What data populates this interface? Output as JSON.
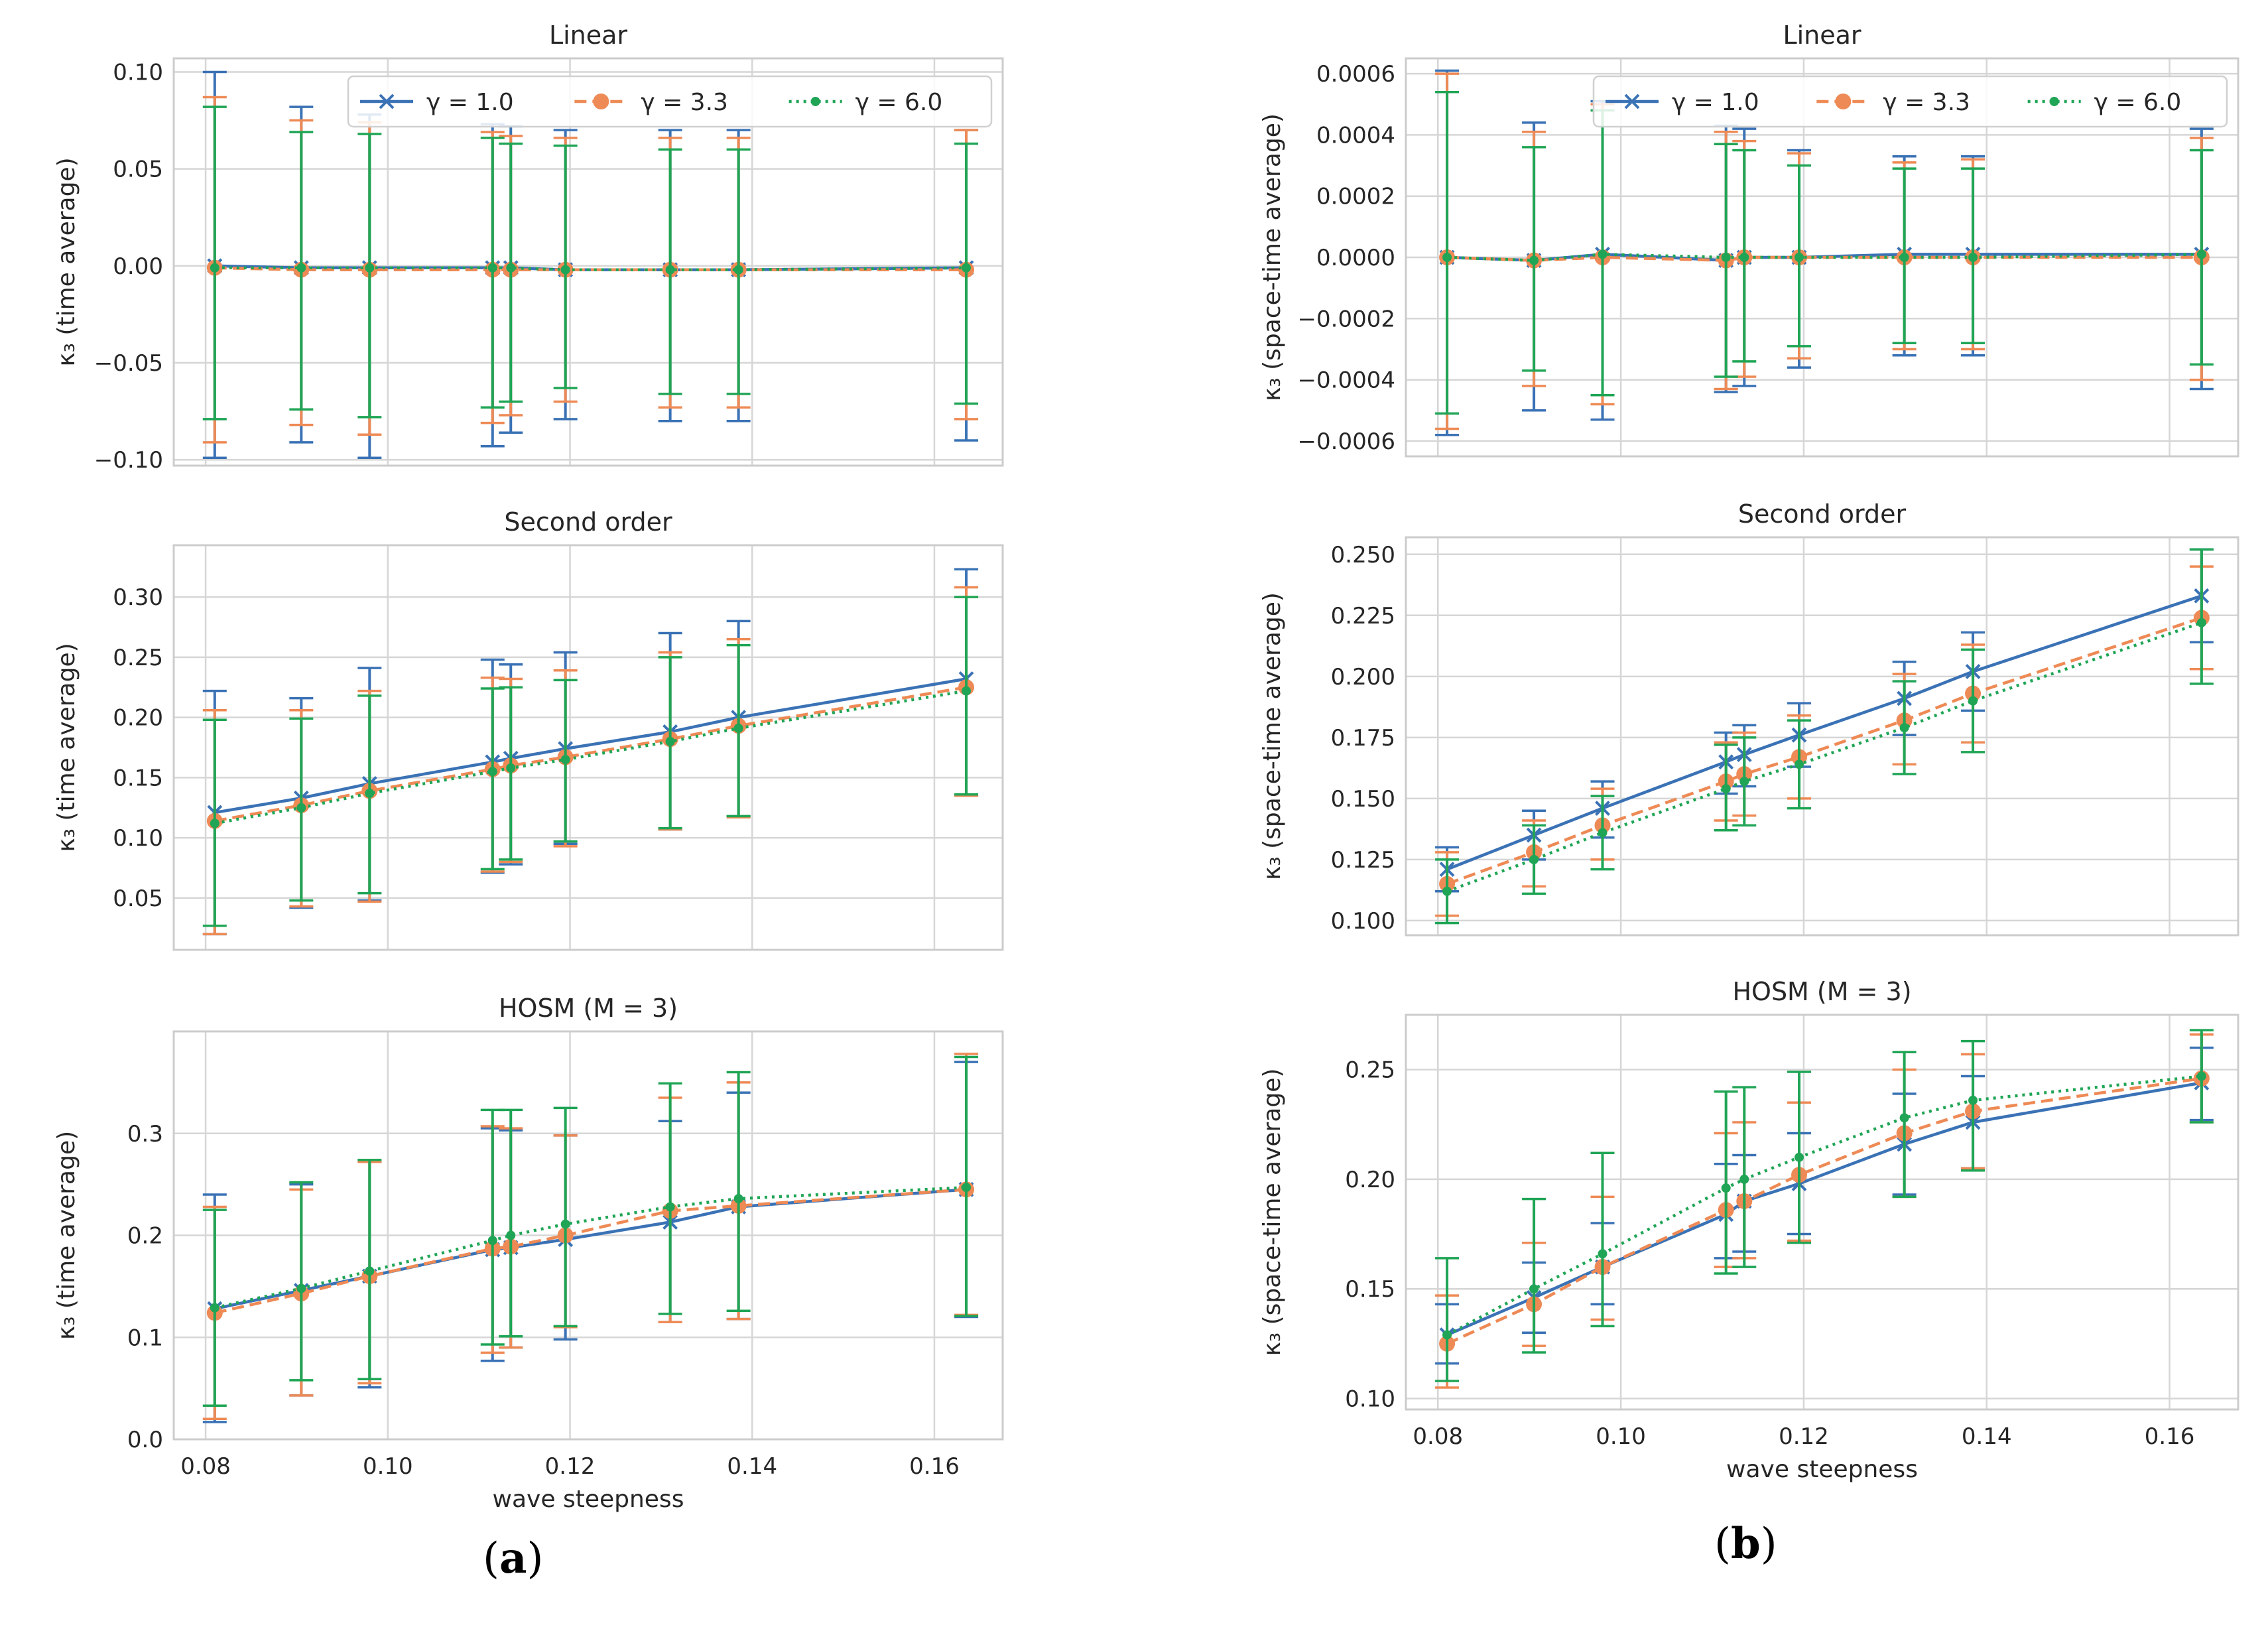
{
  "panel_labels": {
    "a": "a",
    "b": "b"
  },
  "legend_labels": [
    "γ = 1.0",
    "γ = 3.3",
    "γ = 6.0"
  ],
  "series_style": [
    {
      "color": "#3a72b5",
      "dash": "",
      "marker": "x"
    },
    {
      "color": "#ee8a55",
      "dash": "18,9",
      "marker": "circle"
    },
    {
      "color": "#1fa555",
      "dash": "4,7",
      "marker": "dot"
    }
  ],
  "chart_data": [
    {
      "type": "line",
      "id": "a-linear",
      "title": "Linear",
      "xlabel": "",
      "ylabel": "κ₃ (time average)",
      "x": [
        0.081,
        0.0905,
        0.098,
        0.1115,
        0.1135,
        0.1195,
        0.131,
        0.1385,
        0.1635
      ],
      "xlim": [
        0.0765,
        0.1675
      ],
      "xticks": [
        0.08,
        0.1,
        0.12,
        0.14,
        0.16
      ],
      "show_xticklabels": false,
      "ylim": [
        -0.103,
        0.107
      ],
      "yticks": [
        -0.1,
        -0.05,
        0.0,
        0.05,
        0.1
      ],
      "ytick_labels": [
        "−0.10",
        "−0.05",
        "0.00",
        "0.05",
        "0.10"
      ],
      "legend": "top-right",
      "series": [
        {
          "name": "γ = 1.0",
          "values": [
            0.0,
            -0.001,
            -0.001,
            -0.001,
            -0.001,
            -0.002,
            -0.002,
            -0.002,
            -0.001
          ],
          "err_low": [
            -0.099,
            -0.091,
            -0.099,
            -0.093,
            -0.086,
            -0.079,
            -0.08,
            -0.08,
            -0.09
          ],
          "err_high": [
            0.1,
            0.082,
            0.078,
            0.073,
            0.072,
            0.07,
            0.07,
            0.07,
            0.07
          ]
        },
        {
          "name": "γ = 3.3",
          "values": [
            -0.001,
            -0.002,
            -0.002,
            -0.002,
            -0.002,
            -0.002,
            -0.002,
            -0.002,
            -0.002
          ],
          "err_low": [
            -0.091,
            -0.082,
            -0.087,
            -0.081,
            -0.077,
            -0.07,
            -0.073,
            -0.073,
            -0.079
          ],
          "err_high": [
            0.087,
            0.075,
            0.074,
            0.069,
            0.067,
            0.066,
            0.066,
            0.066,
            0.07
          ]
        },
        {
          "name": "γ = 6.0",
          "values": [
            -0.001,
            -0.001,
            -0.001,
            -0.001,
            -0.001,
            -0.002,
            -0.002,
            -0.002,
            -0.001
          ],
          "err_low": [
            -0.079,
            -0.074,
            -0.078,
            -0.073,
            -0.07,
            -0.063,
            -0.066,
            -0.066,
            -0.071
          ],
          "err_high": [
            0.082,
            0.069,
            0.068,
            0.066,
            0.063,
            0.062,
            0.06,
            0.06,
            0.063
          ]
        }
      ]
    },
    {
      "type": "line",
      "id": "a-second",
      "title": "Second order",
      "xlabel": "",
      "ylabel": "κ₃ (time average)",
      "x": [
        0.081,
        0.0905,
        0.098,
        0.1115,
        0.1135,
        0.1195,
        0.131,
        0.1385,
        0.1635
      ],
      "xlim": [
        0.0765,
        0.1675
      ],
      "xticks": [
        0.08,
        0.1,
        0.12,
        0.14,
        0.16
      ],
      "show_xticklabels": false,
      "ylim": [
        0.007,
        0.343
      ],
      "yticks": [
        0.05,
        0.1,
        0.15,
        0.2,
        0.25,
        0.3
      ],
      "ytick_labels": [
        "0.05",
        "0.10",
        "0.15",
        "0.20",
        "0.25",
        "0.30"
      ],
      "series": [
        {
          "name": "γ = 1.0",
          "values": [
            0.121,
            0.133,
            0.145,
            0.163,
            0.166,
            0.174,
            0.188,
            0.2,
            0.232
          ],
          "err_low": [
            0.02,
            0.042,
            0.048,
            0.071,
            0.078,
            0.095,
            0.107,
            0.118,
            0.135
          ],
          "err_high": [
            0.222,
            0.216,
            0.241,
            0.248,
            0.244,
            0.254,
            0.27,
            0.28,
            0.323
          ]
        },
        {
          "name": "γ = 3.3",
          "values": [
            0.114,
            0.127,
            0.139,
            0.157,
            0.16,
            0.167,
            0.182,
            0.193,
            0.225
          ],
          "err_low": [
            0.02,
            0.043,
            0.047,
            0.072,
            0.08,
            0.093,
            0.107,
            0.117,
            0.135
          ],
          "err_high": [
            0.206,
            0.206,
            0.222,
            0.233,
            0.232,
            0.239,
            0.254,
            0.265,
            0.308
          ]
        },
        {
          "name": "γ = 6.0",
          "values": [
            0.112,
            0.125,
            0.137,
            0.155,
            0.158,
            0.165,
            0.18,
            0.191,
            0.222
          ],
          "err_low": [
            0.027,
            0.048,
            0.054,
            0.074,
            0.082,
            0.097,
            0.108,
            0.118,
            0.136
          ],
          "err_high": [
            0.198,
            0.199,
            0.218,
            0.224,
            0.225,
            0.231,
            0.25,
            0.26,
            0.3
          ]
        }
      ]
    },
    {
      "type": "line",
      "id": "a-hosm",
      "title": "HOSM (M = 3)",
      "xlabel": "wave steepness",
      "ylabel": "κ₃ (time average)",
      "x": [
        0.081,
        0.0905,
        0.098,
        0.1115,
        0.1135,
        0.1195,
        0.131,
        0.1385,
        0.1635
      ],
      "xlim": [
        0.0765,
        0.1675
      ],
      "xticks": [
        0.08,
        0.1,
        0.12,
        0.14,
        0.16
      ],
      "show_xticklabels": true,
      "xtick_labels": [
        "0.08",
        "0.10",
        "0.12",
        "0.14",
        "0.16"
      ],
      "ylim": [
        0.0,
        0.4
      ],
      "yticks": [
        0.0,
        0.1,
        0.2,
        0.3
      ],
      "ytick_labels": [
        "0.0",
        "0.1",
        "0.2",
        "0.3"
      ],
      "series": [
        {
          "name": "γ = 1.0",
          "values": [
            0.128,
            0.146,
            0.16,
            0.186,
            0.188,
            0.196,
            0.213,
            0.228,
            0.245
          ],
          "err_low": [
            0.017,
            0.043,
            0.051,
            0.077,
            0.09,
            0.098,
            0.115,
            0.118,
            0.12
          ],
          "err_high": [
            0.24,
            0.25,
            0.272,
            0.305,
            0.303,
            0.298,
            0.312,
            0.34,
            0.37
          ]
        },
        {
          "name": "γ = 3.3",
          "values": [
            0.124,
            0.143,
            0.16,
            0.187,
            0.189,
            0.2,
            0.224,
            0.229,
            0.245
          ],
          "err_low": [
            0.02,
            0.043,
            0.055,
            0.085,
            0.09,
            0.11,
            0.115,
            0.118,
            0.122
          ],
          "err_high": [
            0.228,
            0.245,
            0.272,
            0.307,
            0.305,
            0.298,
            0.335,
            0.35,
            0.378
          ]
        },
        {
          "name": "γ = 6.0",
          "values": [
            0.129,
            0.148,
            0.165,
            0.195,
            0.2,
            0.211,
            0.228,
            0.236,
            0.247
          ],
          "err_low": [
            0.033,
            0.058,
            0.059,
            0.093,
            0.101,
            0.111,
            0.123,
            0.126,
            0.121
          ],
          "err_high": [
            0.225,
            0.252,
            0.274,
            0.323,
            0.323,
            0.325,
            0.349,
            0.36,
            0.375
          ]
        }
      ]
    },
    {
      "type": "line",
      "id": "b-linear",
      "title": "Linear",
      "xlabel": "",
      "ylabel": "κ₃ (space-time average)",
      "x": [
        0.081,
        0.0905,
        0.098,
        0.1115,
        0.1135,
        0.1195,
        0.131,
        0.1385,
        0.1635
      ],
      "xlim": [
        0.0765,
        0.1675
      ],
      "xticks": [
        0.08,
        0.1,
        0.12,
        0.14,
        0.16
      ],
      "show_xticklabels": false,
      "ylim": [
        -0.00065,
        0.00065
      ],
      "yticks": [
        -0.0006,
        -0.0004,
        -0.0002,
        0.0,
        0.0002,
        0.0004,
        0.0006
      ],
      "ytick_labels": [
        "−0.0006",
        "−0.0004",
        "−0.0002",
        "0.0000",
        "0.0002",
        "0.0004",
        "0.0006"
      ],
      "legend": "top-right",
      "series": [
        {
          "name": "γ = 1.0",
          "values": [
            0.0,
            -1e-05,
            1e-05,
            -1e-05,
            0.0,
            0.0,
            1e-05,
            1e-05,
            1e-05
          ],
          "err_low": [
            -0.00058,
            -0.0005,
            -0.00053,
            -0.00044,
            -0.00042,
            -0.00036,
            -0.00032,
            -0.00032,
            -0.00043
          ],
          "err_high": [
            0.00061,
            0.00044,
            0.00051,
            0.00043,
            0.00042,
            0.00035,
            0.00033,
            0.00033,
            0.00042
          ]
        },
        {
          "name": "γ = 3.3",
          "values": [
            0.0,
            -1e-05,
            0.0,
            -1e-05,
            0.0,
            0.0,
            0.0,
            0.0,
            0.0
          ],
          "err_low": [
            -0.00056,
            -0.00042,
            -0.00048,
            -0.00043,
            -0.00039,
            -0.00033,
            -0.0003,
            -0.0003,
            -0.0004
          ],
          "err_high": [
            0.0006,
            0.00041,
            0.0005,
            0.00041,
            0.00038,
            0.00034,
            0.00031,
            0.00032,
            0.00039
          ]
        },
        {
          "name": "γ = 6.0",
          "values": [
            0.0,
            -1e-05,
            1e-05,
            0.0,
            0.0,
            0.0,
            0.0,
            0.0,
            1e-05
          ],
          "err_low": [
            -0.00051,
            -0.00037,
            -0.00045,
            -0.00039,
            -0.00034,
            -0.00029,
            -0.00028,
            -0.00028,
            -0.00035
          ],
          "err_high": [
            0.00054,
            0.00036,
            0.00048,
            0.00037,
            0.00035,
            0.0003,
            0.00029,
            0.00029,
            0.00035
          ]
        }
      ]
    },
    {
      "type": "line",
      "id": "b-second",
      "title": "Second order",
      "xlabel": "",
      "ylabel": "κ₃ (space-time average)",
      "x": [
        0.081,
        0.0905,
        0.098,
        0.1115,
        0.1135,
        0.1195,
        0.131,
        0.1385,
        0.1635
      ],
      "xlim": [
        0.0765,
        0.1675
      ],
      "xticks": [
        0.08,
        0.1,
        0.12,
        0.14,
        0.16
      ],
      "show_xticklabels": false,
      "ylim": [
        0.094,
        0.257
      ],
      "yticks": [
        0.1,
        0.125,
        0.15,
        0.175,
        0.2,
        0.225,
        0.25
      ],
      "ytick_labels": [
        "0.100",
        "0.125",
        "0.150",
        "0.175",
        "0.200",
        "0.225",
        "0.250"
      ],
      "series": [
        {
          "name": "γ = 1.0",
          "values": [
            0.121,
            0.135,
            0.146,
            0.165,
            0.168,
            0.176,
            0.191,
            0.202,
            0.233
          ],
          "err_low": [
            0.112,
            0.125,
            0.134,
            0.152,
            0.155,
            0.163,
            0.176,
            0.186,
            0.214
          ],
          "err_high": [
            0.13,
            0.145,
            0.157,
            0.177,
            0.18,
            0.189,
            0.206,
            0.218,
            0.252
          ]
        },
        {
          "name": "γ = 3.3",
          "values": [
            0.115,
            0.128,
            0.139,
            0.157,
            0.16,
            0.167,
            0.182,
            0.193,
            0.224
          ],
          "err_low": [
            0.102,
            0.114,
            0.125,
            0.141,
            0.143,
            0.15,
            0.164,
            0.173,
            0.203
          ],
          "err_high": [
            0.128,
            0.141,
            0.154,
            0.173,
            0.177,
            0.184,
            0.201,
            0.213,
            0.245
          ]
        },
        {
          "name": "γ = 6.0",
          "values": [
            0.112,
            0.125,
            0.136,
            0.154,
            0.157,
            0.164,
            0.179,
            0.19,
            0.222
          ],
          "err_low": [
            0.099,
            0.111,
            0.121,
            0.137,
            0.139,
            0.146,
            0.16,
            0.169,
            0.197
          ],
          "err_high": [
            0.125,
            0.139,
            0.151,
            0.172,
            0.175,
            0.182,
            0.198,
            0.211,
            0.252
          ]
        }
      ]
    },
    {
      "type": "line",
      "id": "b-hosm",
      "title": "HOSM (M = 3)",
      "xlabel": "wave steepness",
      "ylabel": "κ₃ (space-time average)",
      "x": [
        0.081,
        0.0905,
        0.098,
        0.1115,
        0.1135,
        0.1195,
        0.131,
        0.1385,
        0.1635
      ],
      "xlim": [
        0.0765,
        0.1675
      ],
      "xticks": [
        0.08,
        0.1,
        0.12,
        0.14,
        0.16
      ],
      "show_xticklabels": true,
      "xtick_labels": [
        "0.08",
        "0.10",
        "0.12",
        "0.14",
        "0.16"
      ],
      "ylim": [
        0.095,
        0.275
      ],
      "yticks": [
        0.1,
        0.15,
        0.2,
        0.25
      ],
      "ytick_labels": [
        "0.10",
        "0.15",
        "0.20",
        "0.25"
      ],
      "series": [
        {
          "name": "γ = 1.0",
          "values": [
            0.129,
            0.146,
            0.16,
            0.184,
            0.19,
            0.198,
            0.216,
            0.226,
            0.244
          ],
          "err_low": [
            0.116,
            0.13,
            0.143,
            0.164,
            0.167,
            0.175,
            0.193,
            0.205,
            0.227
          ],
          "err_high": [
            0.143,
            0.162,
            0.18,
            0.207,
            0.211,
            0.221,
            0.239,
            0.247,
            0.26
          ]
        },
        {
          "name": "γ = 3.3",
          "values": [
            0.125,
            0.143,
            0.16,
            0.186,
            0.19,
            0.202,
            0.221,
            0.231,
            0.246
          ],
          "err_low": [
            0.105,
            0.124,
            0.136,
            0.16,
            0.164,
            0.172,
            0.192,
            0.205,
            0.226
          ],
          "err_high": [
            0.147,
            0.171,
            0.192,
            0.221,
            0.226,
            0.235,
            0.25,
            0.257,
            0.266
          ]
        },
        {
          "name": "γ = 6.0",
          "values": [
            0.129,
            0.15,
            0.166,
            0.196,
            0.2,
            0.21,
            0.228,
            0.236,
            0.247
          ],
          "err_low": [
            0.108,
            0.121,
            0.133,
            0.157,
            0.16,
            0.171,
            0.192,
            0.204,
            0.226
          ],
          "err_high": [
            0.164,
            0.191,
            0.212,
            0.24,
            0.242,
            0.249,
            0.258,
            0.263,
            0.268
          ]
        }
      ]
    }
  ]
}
